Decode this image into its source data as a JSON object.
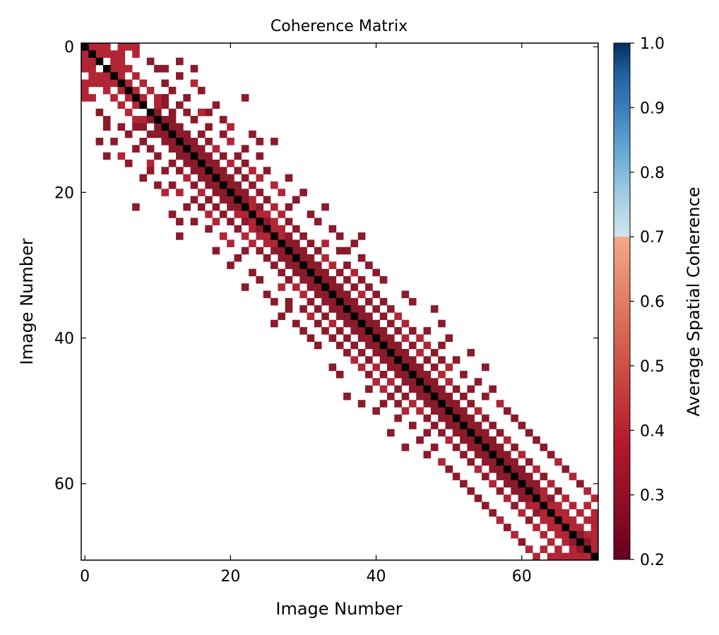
{
  "chart_data": {
    "type": "heatmap",
    "title": "Coherence Matrix",
    "xlabel": "Image Number",
    "ylabel": "Image Number",
    "n": 71,
    "xlim": [
      0,
      70
    ],
    "ylim": [
      0,
      70
    ],
    "x_ticks": [
      0,
      20,
      40,
      60
    ],
    "y_ticks": [
      0,
      20,
      40,
      60
    ],
    "colorbar": {
      "label": "Average Spatial Coherence",
      "range": [
        0.2,
        1.0
      ],
      "ticks": [
        "0.2",
        "0.3",
        "0.4",
        "0.5",
        "0.6",
        "0.7",
        "0.8",
        "0.9",
        "1.0"
      ],
      "threshold": 0.7,
      "colormap": "RdBu",
      "values_below_threshold_red": true
    },
    "diagonal_color": "#000000",
    "colors": {
      "dark_red": "#8b1a2b",
      "red": "#b22535",
      "black": "#000000"
    },
    "cells": [
      [
        0,
        1,
        0.38
      ],
      [
        0,
        2,
        0.36
      ],
      [
        0,
        3,
        0.36
      ],
      [
        0,
        5,
        0.38
      ],
      [
        0,
        6,
        0.38
      ],
      [
        0,
        7,
        0.38
      ],
      [
        1,
        2,
        0.38
      ],
      [
        1,
        3,
        0.38
      ],
      [
        1,
        4,
        0.38
      ],
      [
        1,
        5,
        0.38
      ],
      [
        1,
        7,
        0.38
      ],
      [
        2,
        4,
        0.38
      ],
      [
        2,
        5,
        0.36
      ],
      [
        2,
        9,
        0.3
      ],
      [
        2,
        13,
        0.3
      ],
      [
        3,
        4,
        0.38
      ],
      [
        3,
        5,
        0.36
      ],
      [
        3,
        6,
        0.36
      ],
      [
        3,
        10,
        0.3
      ],
      [
        3,
        11,
        0.3
      ],
      [
        3,
        15,
        0.3
      ],
      [
        4,
        5,
        0.36
      ],
      [
        4,
        7,
        0.36
      ],
      [
        4,
        13,
        0.3
      ],
      [
        5,
        6,
        0.36
      ],
      [
        5,
        8,
        0.36
      ],
      [
        5,
        11,
        0.3
      ],
      [
        5,
        15,
        0.38
      ],
      [
        6,
        7,
        0.36
      ],
      [
        6,
        9,
        0.36
      ],
      [
        6,
        12,
        0.3
      ],
      [
        6,
        16,
        0.3
      ],
      [
        7,
        8,
        0.36
      ],
      [
        7,
        10,
        0.36
      ],
      [
        7,
        11,
        0.3
      ],
      [
        7,
        14,
        0.3
      ],
      [
        7,
        22,
        0.3
      ],
      [
        8,
        10,
        0.36
      ],
      [
        8,
        11,
        0.3
      ],
      [
        8,
        13,
        0.3
      ],
      [
        8,
        18,
        0.3
      ],
      [
        9,
        10,
        0.3
      ],
      [
        9,
        12,
        0.3
      ],
      [
        9,
        14,
        0.3
      ],
      [
        9,
        16,
        0.38
      ],
      [
        9,
        17,
        0.3
      ],
      [
        10,
        11,
        0.3
      ],
      [
        10,
        12,
        0.3
      ],
      [
        10,
        15,
        0.3
      ],
      [
        10,
        19,
        0.3
      ],
      [
        11,
        12,
        0.3
      ],
      [
        11,
        13,
        0.3
      ],
      [
        11,
        17,
        0.3
      ],
      [
        11,
        20,
        0.38
      ],
      [
        12,
        13,
        0.3
      ],
      [
        12,
        14,
        0.3
      ],
      [
        12,
        16,
        0.3
      ],
      [
        12,
        19,
        0.3
      ],
      [
        12,
        23,
        0.3
      ],
      [
        13,
        14,
        0.3
      ],
      [
        13,
        15,
        0.3
      ],
      [
        13,
        17,
        0.3
      ],
      [
        13,
        20,
        0.38
      ],
      [
        13,
        24,
        0.3
      ],
      [
        13,
        26,
        0.3
      ],
      [
        14,
        15,
        0.3
      ],
      [
        14,
        16,
        0.3
      ],
      [
        14,
        18,
        0.38
      ],
      [
        14,
        22,
        0.3
      ],
      [
        15,
        16,
        0.3
      ],
      [
        15,
        17,
        0.3
      ],
      [
        15,
        19,
        0.3
      ],
      [
        15,
        21,
        0.3
      ],
      [
        15,
        24,
        0.3
      ],
      [
        16,
        17,
        0.3
      ],
      [
        16,
        18,
        0.3
      ],
      [
        16,
        20,
        0.38
      ],
      [
        16,
        22,
        0.3
      ],
      [
        17,
        18,
        0.3
      ],
      [
        17,
        19,
        0.3
      ],
      [
        17,
        21,
        0.3
      ],
      [
        17,
        23,
        0.38
      ],
      [
        17,
        25,
        0.3
      ],
      [
        18,
        19,
        0.3
      ],
      [
        18,
        20,
        0.3
      ],
      [
        18,
        22,
        0.3
      ],
      [
        18,
        24,
        0.38
      ],
      [
        18,
        28,
        0.3
      ],
      [
        19,
        20,
        0.3
      ],
      [
        19,
        21,
        0.3
      ],
      [
        19,
        23,
        0.3
      ],
      [
        19,
        26,
        0.38
      ],
      [
        20,
        21,
        0.3
      ],
      [
        20,
        22,
        0.3
      ],
      [
        20,
        24,
        0.3
      ],
      [
        20,
        27,
        0.38
      ],
      [
        20,
        30,
        0.3
      ],
      [
        21,
        22,
        0.3
      ],
      [
        21,
        23,
        0.38
      ],
      [
        21,
        25,
        0.3
      ],
      [
        21,
        29,
        0.3
      ],
      [
        22,
        23,
        0.38
      ],
      [
        22,
        24,
        0.3
      ],
      [
        22,
        26,
        0.38
      ],
      [
        22,
        28,
        0.3
      ],
      [
        22,
        33,
        0.3
      ],
      [
        23,
        24,
        0.38
      ],
      [
        23,
        25,
        0.38
      ],
      [
        23,
        27,
        0.38
      ],
      [
        23,
        31,
        0.3
      ],
      [
        24,
        25,
        0.3
      ],
      [
        24,
        26,
        0.38
      ],
      [
        24,
        28,
        0.3
      ],
      [
        24,
        32,
        0.3
      ],
      [
        25,
        26,
        0.38
      ],
      [
        25,
        27,
        0.38
      ],
      [
        25,
        29,
        0.3
      ],
      [
        25,
        34,
        0.3
      ],
      [
        26,
        27,
        0.38
      ],
      [
        26,
        28,
        0.3
      ],
      [
        26,
        30,
        0.3
      ],
      [
        26,
        35,
        0.3
      ],
      [
        26,
        38,
        0.3
      ],
      [
        27,
        28,
        0.3
      ],
      [
        27,
        29,
        0.3
      ],
      [
        27,
        31,
        0.3
      ],
      [
        27,
        33,
        0.38
      ],
      [
        27,
        37,
        0.3
      ],
      [
        28,
        29,
        0.3
      ],
      [
        28,
        30,
        0.3
      ],
      [
        28,
        32,
        0.3
      ],
      [
        28,
        35,
        0.3
      ],
      [
        28,
        36,
        0.3
      ],
      [
        29,
        30,
        0.3
      ],
      [
        29,
        31,
        0.3
      ],
      [
        29,
        33,
        0.38
      ],
      [
        29,
        38,
        0.3
      ],
      [
        30,
        31,
        0.3
      ],
      [
        30,
        32,
        0.3
      ],
      [
        30,
        34,
        0.38
      ],
      [
        30,
        36,
        0.3
      ],
      [
        30,
        39,
        0.3
      ],
      [
        31,
        32,
        0.3
      ],
      [
        31,
        33,
        0.3
      ],
      [
        31,
        35,
        0.3
      ],
      [
        31,
        37,
        0.38
      ],
      [
        31,
        40,
        0.3
      ],
      [
        32,
        33,
        0.3
      ],
      [
        32,
        34,
        0.3
      ],
      [
        32,
        36,
        0.3
      ],
      [
        32,
        38,
        0.3
      ],
      [
        32,
        41,
        0.3
      ],
      [
        33,
        34,
        0.3
      ],
      [
        33,
        35,
        0.3
      ],
      [
        33,
        37,
        0.3
      ],
      [
        33,
        39,
        0.3
      ],
      [
        34,
        35,
        0.3
      ],
      [
        34,
        36,
        0.3
      ],
      [
        34,
        38,
        0.38
      ],
      [
        34,
        40,
        0.3
      ],
      [
        34,
        44,
        0.3
      ],
      [
        35,
        36,
        0.3
      ],
      [
        35,
        37,
        0.3
      ],
      [
        35,
        39,
        0.3
      ],
      [
        35,
        41,
        0.3
      ],
      [
        35,
        45,
        0.3
      ],
      [
        36,
        37,
        0.3
      ],
      [
        36,
        38,
        0.3
      ],
      [
        36,
        40,
        0.3
      ],
      [
        36,
        42,
        0.3
      ],
      [
        36,
        48,
        0.3
      ],
      [
        37,
        38,
        0.3
      ],
      [
        37,
        39,
        0.3
      ],
      [
        37,
        41,
        0.3
      ],
      [
        37,
        43,
        0.38
      ],
      [
        38,
        39,
        0.3
      ],
      [
        38,
        40,
        0.3
      ],
      [
        38,
        42,
        0.3
      ],
      [
        38,
        44,
        0.38
      ],
      [
        38,
        49,
        0.3
      ],
      [
        39,
        40,
        0.3
      ],
      [
        39,
        41,
        0.3
      ],
      [
        39,
        43,
        0.3
      ],
      [
        39,
        45,
        0.3
      ],
      [
        39,
        47,
        0.3
      ],
      [
        40,
        41,
        0.3
      ],
      [
        40,
        42,
        0.3
      ],
      [
        40,
        44,
        0.38
      ],
      [
        40,
        46,
        0.38
      ],
      [
        40,
        50,
        0.3
      ],
      [
        41,
        42,
        0.3
      ],
      [
        41,
        43,
        0.3
      ],
      [
        41,
        45,
        0.3
      ],
      [
        41,
        47,
        0.38
      ],
      [
        41,
        49,
        0.3
      ],
      [
        42,
        43,
        0.3
      ],
      [
        42,
        44,
        0.3
      ],
      [
        42,
        46,
        0.38
      ],
      [
        42,
        48,
        0.3
      ],
      [
        42,
        53,
        0.3
      ],
      [
        43,
        44,
        0.3
      ],
      [
        43,
        45,
        0.3
      ],
      [
        43,
        47,
        0.3
      ],
      [
        43,
        49,
        0.3
      ],
      [
        43,
        51,
        0.3
      ],
      [
        44,
        45,
        0.3
      ],
      [
        44,
        46,
        0.3
      ],
      [
        44,
        48,
        0.3
      ],
      [
        44,
        50,
        0.38
      ],
      [
        44,
        55,
        0.3
      ],
      [
        45,
        46,
        0.3
      ],
      [
        45,
        47,
        0.3
      ],
      [
        45,
        49,
        0.38
      ],
      [
        45,
        52,
        0.3
      ],
      [
        46,
        47,
        0.3
      ],
      [
        46,
        48,
        0.3
      ],
      [
        46,
        50,
        0.38
      ],
      [
        46,
        54,
        0.3
      ],
      [
        47,
        48,
        0.3
      ],
      [
        47,
        49,
        0.3
      ],
      [
        47,
        51,
        0.3
      ],
      [
        47,
        53,
        0.3
      ],
      [
        47,
        56,
        0.3
      ],
      [
        48,
        49,
        0.25
      ],
      [
        48,
        50,
        0.25
      ],
      [
        48,
        52,
        0.3
      ],
      [
        48,
        55,
        0.3
      ],
      [
        49,
        50,
        0.25
      ],
      [
        49,
        51,
        0.3
      ],
      [
        49,
        53,
        0.3
      ],
      [
        49,
        57,
        0.38
      ],
      [
        50,
        51,
        0.3
      ],
      [
        50,
        52,
        0.3
      ],
      [
        50,
        54,
        0.38
      ],
      [
        50,
        58,
        0.3
      ],
      [
        51,
        52,
        0.3
      ],
      [
        51,
        53,
        0.3
      ],
      [
        51,
        55,
        0.3
      ],
      [
        51,
        59,
        0.3
      ],
      [
        52,
        53,
        0.3
      ],
      [
        52,
        54,
        0.3
      ],
      [
        52,
        56,
        0.3
      ],
      [
        52,
        60,
        0.3
      ],
      [
        53,
        54,
        0.3
      ],
      [
        53,
        55,
        0.3
      ],
      [
        53,
        57,
        0.3
      ],
      [
        53,
        61,
        0.3
      ],
      [
        54,
        55,
        0.3
      ],
      [
        54,
        56,
        0.3
      ],
      [
        54,
        58,
        0.38
      ],
      [
        54,
        62,
        0.3
      ],
      [
        55,
        56,
        0.3
      ],
      [
        55,
        57,
        0.3
      ],
      [
        55,
        59,
        0.3
      ],
      [
        55,
        63,
        0.3
      ],
      [
        56,
        57,
        0.3
      ],
      [
        56,
        58,
        0.3
      ],
      [
        56,
        60,
        0.38
      ],
      [
        56,
        64,
        0.3
      ],
      [
        57,
        58,
        0.3
      ],
      [
        57,
        59,
        0.3
      ],
      [
        57,
        61,
        0.3
      ],
      [
        57,
        65,
        0.38
      ],
      [
        58,
        59,
        0.3
      ],
      [
        58,
        60,
        0.3
      ],
      [
        58,
        62,
        0.38
      ],
      [
        58,
        66,
        0.3
      ],
      [
        59,
        60,
        0.3
      ],
      [
        59,
        61,
        0.3
      ],
      [
        59,
        63,
        0.3
      ],
      [
        59,
        67,
        0.38
      ],
      [
        60,
        61,
        0.3
      ],
      [
        60,
        62,
        0.3
      ],
      [
        60,
        64,
        0.38
      ],
      [
        60,
        68,
        0.3
      ],
      [
        61,
        62,
        0.3
      ],
      [
        61,
        63,
        0.38
      ],
      [
        61,
        65,
        0.3
      ],
      [
        61,
        69,
        0.38
      ],
      [
        62,
        63,
        0.38
      ],
      [
        62,
        64,
        0.3
      ],
      [
        62,
        66,
        0.38
      ],
      [
        62,
        70,
        0.38
      ],
      [
        63,
        64,
        0.38
      ],
      [
        63,
        65,
        0.38
      ],
      [
        63,
        67,
        0.38
      ],
      [
        63,
        69,
        0.38
      ],
      [
        64,
        65,
        0.38
      ],
      [
        64,
        66,
        0.38
      ],
      [
        64,
        68,
        0.38
      ],
      [
        64,
        70,
        0.38
      ],
      [
        65,
        66,
        0.38
      ],
      [
        65,
        67,
        0.38
      ],
      [
        65,
        69,
        0.38
      ],
      [
        65,
        70,
        0.38
      ],
      [
        66,
        67,
        0.38
      ],
      [
        66,
        68,
        0.38
      ],
      [
        66,
        70,
        0.38
      ],
      [
        67,
        68,
        0.3
      ],
      [
        67,
        69,
        0.38
      ],
      [
        67,
        70,
        0.38
      ],
      [
        68,
        69,
        0.3
      ],
      [
        68,
        70,
        0.38
      ],
      [
        69,
        70,
        0.38
      ]
    ]
  }
}
